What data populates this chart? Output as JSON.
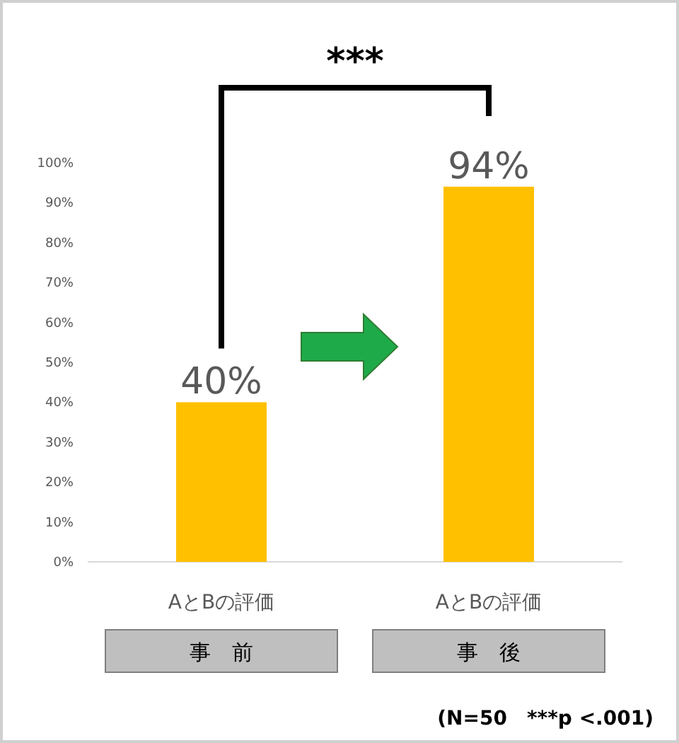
{
  "chart_data": {
    "type": "bar",
    "categories": [
      "AとBの評価",
      "AとBの評価"
    ],
    "values": [
      40,
      94
    ],
    "value_labels": [
      "40%",
      "94%"
    ],
    "color": "#ffc000",
    "ylim": [
      0,
      100
    ],
    "yticks": [
      {
        "value": 0,
        "label": "0%"
      },
      {
        "value": 10,
        "label": "10%"
      },
      {
        "value": 20,
        "label": "20%"
      },
      {
        "value": 30,
        "label": "30%"
      },
      {
        "value": 40,
        "label": "40%"
      },
      {
        "value": 50,
        "label": "50%"
      },
      {
        "value": 60,
        "label": "60%"
      },
      {
        "value": 70,
        "label": "70%"
      },
      {
        "value": 80,
        "label": "80%"
      },
      {
        "value": 90,
        "label": "90%"
      },
      {
        "value": 100,
        "label": "100%"
      }
    ],
    "grid": false,
    "annotations": [
      "***",
      "事　前",
      "事　後",
      "(N=50　***p <.001)"
    ]
  }
}
